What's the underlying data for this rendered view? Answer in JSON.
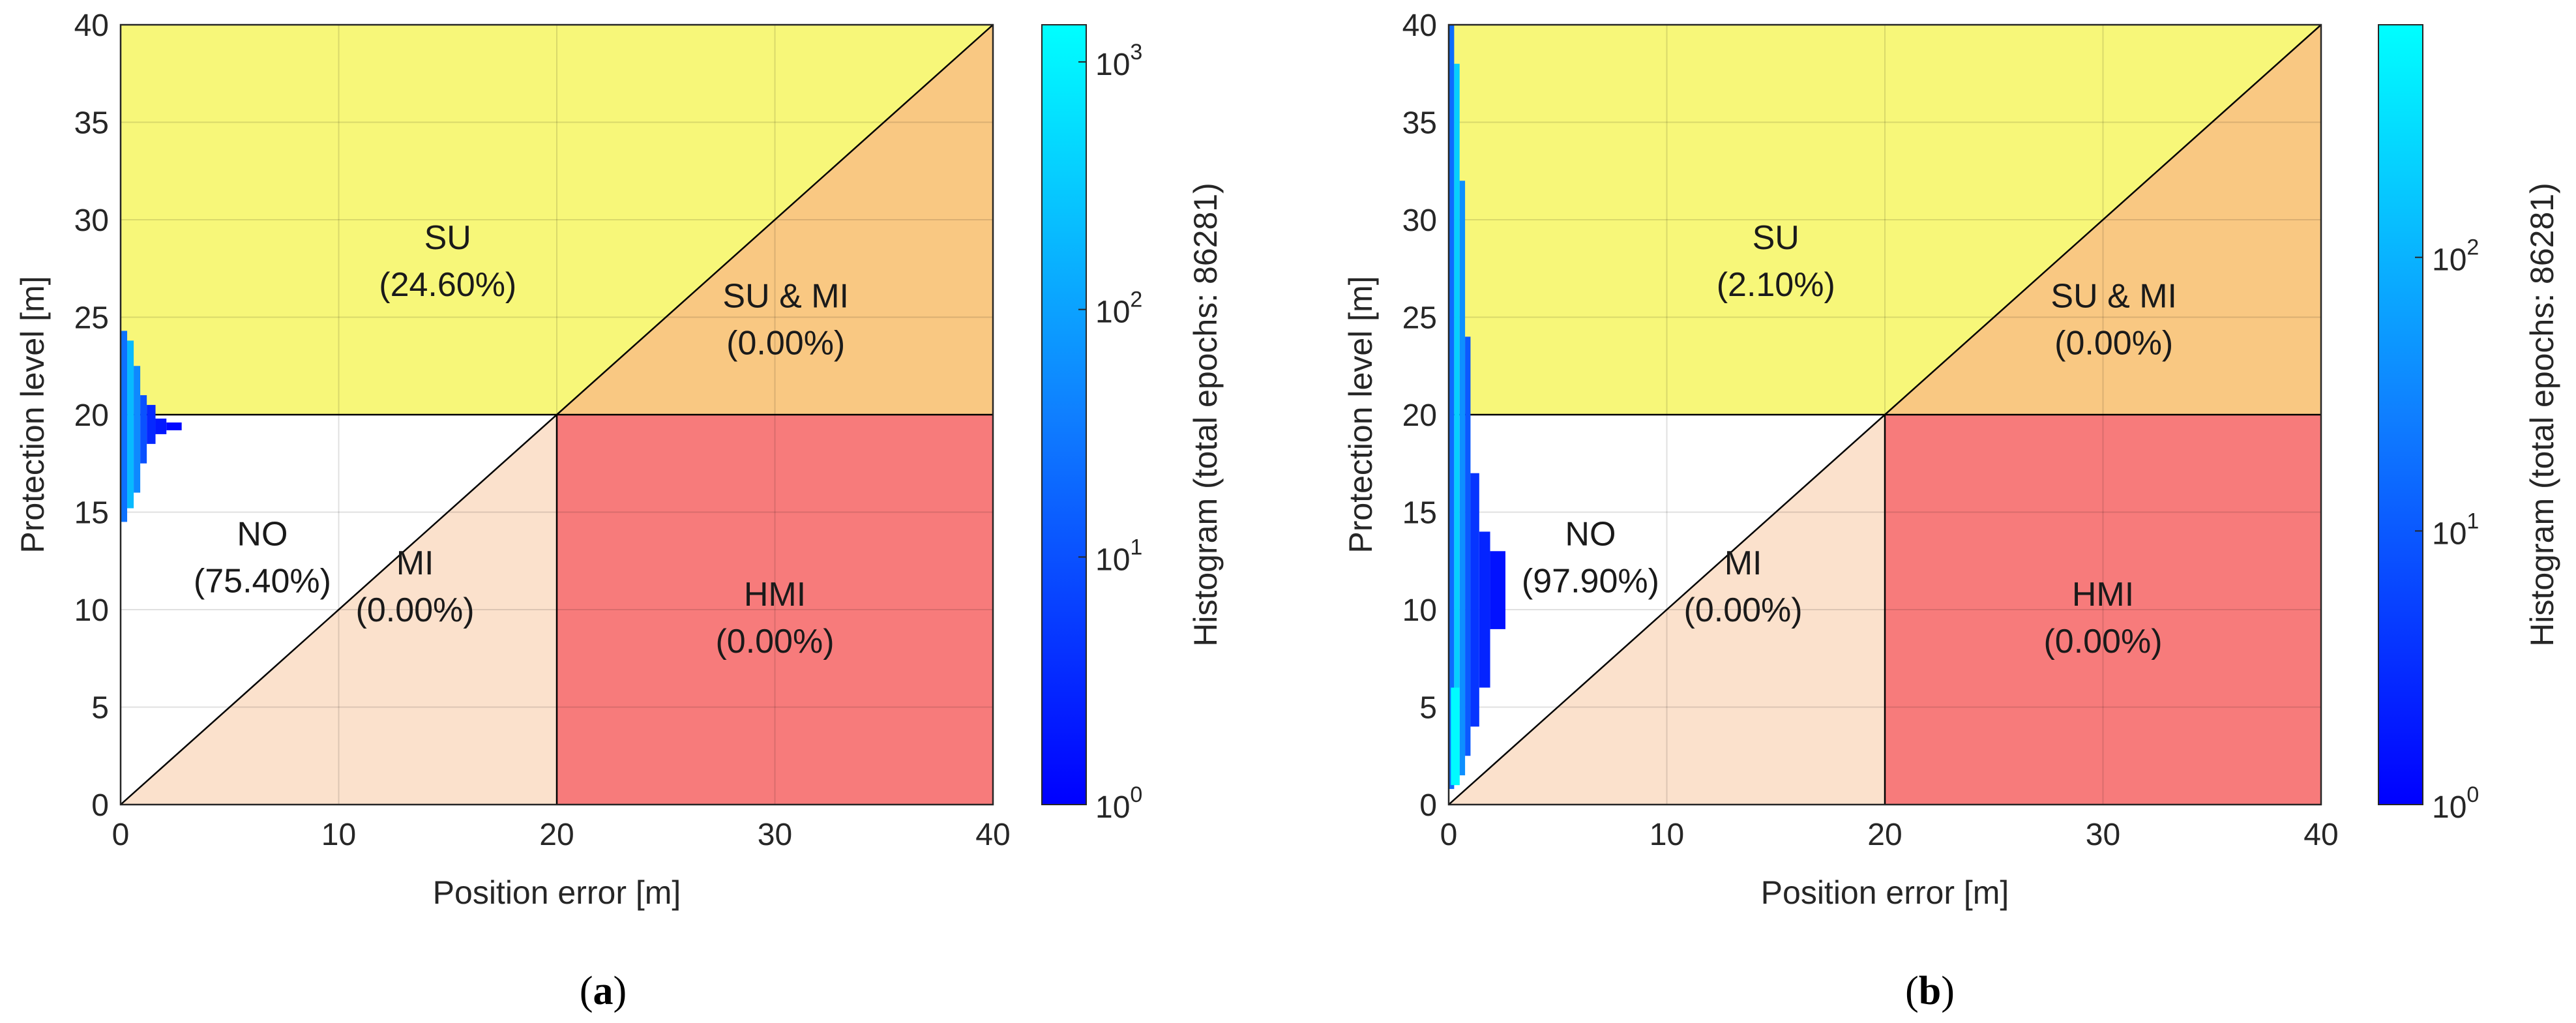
{
  "chart_data": [
    {
      "type": "heatmap",
      "panel": "a",
      "caption_letter": "a",
      "xlabel": "Position error [m]",
      "ylabel": "Protection level [m]",
      "xlim": [
        0,
        40
      ],
      "ylim": [
        0,
        40
      ],
      "xticks": [
        "0",
        "10",
        "20",
        "30",
        "40"
      ],
      "yticks": [
        "0",
        "5",
        "10",
        "15",
        "20",
        "25",
        "30",
        "35",
        "40"
      ],
      "alert_limit": 20,
      "grid": true,
      "colorbar": {
        "label": "Histogram (total epochs: 86281)",
        "scale": "log",
        "max_exponent": 3.15,
        "ticks": [
          {
            "base": "10",
            "exp": "0",
            "value": 1
          },
          {
            "base": "10",
            "exp": "1",
            "value": 10
          },
          {
            "base": "10",
            "exp": "2",
            "value": 100
          },
          {
            "base": "10",
            "exp": "3",
            "value": 1000
          }
        ]
      },
      "regions": {
        "SU": {
          "label": "SU",
          "pct": "(24.60%)",
          "color": "#f7f779"
        },
        "SUMI": {
          "label": "SU & MI",
          "pct": "(0.00%)",
          "color": "#f9c882"
        },
        "NO": {
          "label": "NO",
          "pct": "(75.40%)",
          "color": "#ffffff"
        },
        "MI": {
          "label": "MI",
          "pct": "(0.00%)",
          "color": "#fbe1cc"
        },
        "HMI": {
          "label": "HMI",
          "pct": "(0.00%)",
          "color": "#f77b7b"
        }
      },
      "histogram_bins": [
        {
          "pe": [
            0,
            0.3
          ],
          "pl": [
            14.5,
            24.3
          ],
          "log": 1.4
        },
        {
          "pe": [
            0.3,
            0.6
          ],
          "pl": [
            15.2,
            23.8
          ],
          "log": 2.3
        },
        {
          "pe": [
            0.6,
            0.9
          ],
          "pl": [
            16.0,
            22.5
          ],
          "log": 1.7
        },
        {
          "pe": [
            0.9,
            1.2
          ],
          "pl": [
            17.5,
            21.0
          ],
          "log": 1.0
        },
        {
          "pe": [
            1.2,
            1.6
          ],
          "pl": [
            18.5,
            20.5
          ],
          "log": 0.5
        },
        {
          "pe": [
            1.6,
            2.1
          ],
          "pl": [
            19.0,
            19.8
          ],
          "log": 0.3
        },
        {
          "pe": [
            2.1,
            2.8
          ],
          "pl": [
            19.2,
            19.6
          ],
          "log": 0.1
        }
      ]
    },
    {
      "type": "heatmap",
      "panel": "b",
      "caption_letter": "b",
      "xlabel": "Position error [m]",
      "ylabel": "Protection level [m]",
      "xlim": [
        0,
        40
      ],
      "ylim": [
        0,
        40
      ],
      "xticks": [
        "0",
        "10",
        "20",
        "30",
        "40"
      ],
      "yticks": [
        "0",
        "5",
        "10",
        "15",
        "20",
        "25",
        "30",
        "35",
        "40"
      ],
      "alert_limit": 20,
      "grid": true,
      "colorbar": {
        "label": "Histogram (total epochs: 86281)",
        "scale": "log",
        "max_exponent": 2.85,
        "ticks": [
          {
            "base": "10",
            "exp": "0",
            "value": 1
          },
          {
            "base": "10",
            "exp": "1",
            "value": 10
          },
          {
            "base": "10",
            "exp": "2",
            "value": 100
          }
        ]
      },
      "regions": {
        "SU": {
          "label": "SU",
          "pct": "(2.10%)",
          "color": "#f7f779"
        },
        "SUMI": {
          "label": "SU & MI",
          "pct": "(0.00%)",
          "color": "#f9c882"
        },
        "NO": {
          "label": "NO",
          "pct": "(97.90%)",
          "color": "#ffffff"
        },
        "MI": {
          "label": "MI",
          "pct": "(0.00%)",
          "color": "#fbe1cc"
        },
        "HMI": {
          "label": "HMI",
          "pct": "(0.00%)",
          "color": "#f77b7b"
        }
      },
      "histogram_bins": [
        {
          "pe": [
            0,
            0.25
          ],
          "pl": [
            0.8,
            40.0
          ],
          "log": 1.2
        },
        {
          "pe": [
            0.25,
            0.5
          ],
          "pl": [
            1.0,
            38.0
          ],
          "log": 2.3
        },
        {
          "pe": [
            0.5,
            0.75
          ],
          "pl": [
            1.5,
            32.0
          ],
          "log": 1.6
        },
        {
          "pe": [
            0.75,
            1.0
          ],
          "pl": [
            2.5,
            24.0
          ],
          "log": 1.0
        },
        {
          "pe": [
            1.0,
            1.4
          ],
          "pl": [
            4.0,
            17.0
          ],
          "log": 0.6
        },
        {
          "pe": [
            1.4,
            1.9
          ],
          "pl": [
            6.0,
            14.0
          ],
          "log": 0.4
        },
        {
          "pe": [
            1.9,
            2.6
          ],
          "pl": [
            9.0,
            13.0
          ],
          "log": 0.2
        },
        {
          "pe": [
            0.1,
            0.5
          ],
          "pl": [
            1.0,
            6.0
          ],
          "log": 2.8
        }
      ]
    }
  ]
}
